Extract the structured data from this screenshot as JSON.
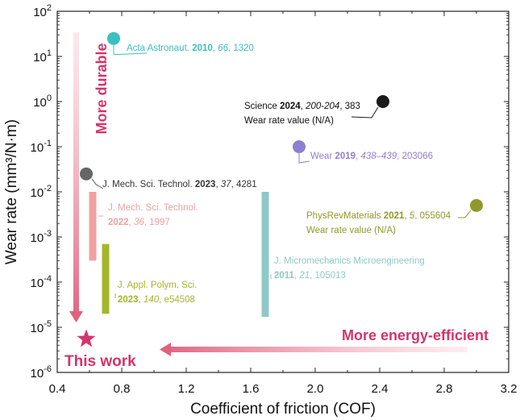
{
  "chart_data": {
    "type": "scatter",
    "xlabel": "Coefficient of friction (COF)",
    "ylabel": "Wear rate (mm³/N·m)",
    "xlim": [
      0.4,
      3.2
    ],
    "ylim_log10": [
      -6,
      2
    ],
    "y_scale": "log",
    "x_ticks": [
      "0.4",
      "0.8",
      "1.2",
      "1.6",
      "2.0",
      "2.4",
      "2.8",
      "3.2"
    ],
    "y_ticks": [
      {
        "base": "10",
        "exp": "2"
      },
      {
        "base": "10",
        "exp": "1"
      },
      {
        "base": "10",
        "exp": "0"
      },
      {
        "base": "10",
        "exp": "-1"
      },
      {
        "base": "10",
        "exp": "-2"
      },
      {
        "base": "10",
        "exp": "-3"
      },
      {
        "base": "10",
        "exp": "-4"
      },
      {
        "base": "10",
        "exp": "-5"
      },
      {
        "base": "10",
        "exp": "-6"
      }
    ],
    "grid": false,
    "points": [
      {
        "x": 0.75,
        "y": 25,
        "color": "#3bbfbf",
        "label": [
          {
            "t": "Acta Astronaut. ",
            "s": "n"
          },
          {
            "t": "2010",
            "s": "b"
          },
          {
            "t": ", ",
            "s": "n"
          },
          {
            "t": "66",
            "s": "i"
          },
          {
            "t": ", 1320",
            "s": "n"
          }
        ]
      },
      {
        "x": 2.42,
        "y": 1.0,
        "color": "#1a1a1a",
        "label": [
          {
            "t": "Science ",
            "s": "n"
          },
          {
            "t": "2024",
            "s": "b"
          },
          {
            "t": ", ",
            "s": "n"
          },
          {
            "t": "200-204",
            "s": "i"
          },
          {
            "t": ", 383",
            "s": "n"
          }
        ],
        "label2": "Wear rate value (N/A)"
      },
      {
        "x": 1.9,
        "y": 0.1,
        "color": "#8f7fd0",
        "label": [
          {
            "t": "Wear ",
            "s": "n"
          },
          {
            "t": "2019",
            "s": "b"
          },
          {
            "t": ", ",
            "s": "n"
          },
          {
            "t": "438–439",
            "s": "i"
          },
          {
            "t": ", 203066",
            "s": "n"
          }
        ]
      },
      {
        "x": 0.58,
        "y": 0.025,
        "color": "#666666",
        "label": [
          {
            "t": "J. Mech. Sci. Technol. ",
            "s": "n"
          },
          {
            "t": "2023",
            "s": "b"
          },
          {
            "t": ", ",
            "s": "n"
          },
          {
            "t": "37",
            "s": "i"
          },
          {
            "t": ", 4281",
            "s": "n"
          }
        ]
      },
      {
        "x": 3.0,
        "y": 0.005,
        "color": "#8f9a2a",
        "label": [
          {
            "t": "PhysRevMaterials ",
            "s": "n"
          },
          {
            "t": "2021",
            "s": "b"
          },
          {
            "t": ", ",
            "s": "n"
          },
          {
            "t": "5",
            "s": "i"
          },
          {
            "t": ", 055604",
            "s": "n"
          }
        ],
        "label2": "Wear rate value (N/A)"
      }
    ],
    "ranges": [
      {
        "x": 0.62,
        "y_min": 0.0003,
        "y_max": 0.01,
        "color": "#f0a0a0",
        "label": [
          {
            "t": "J. Mech. Sci. Technol.",
            "s": "n"
          }
        ],
        "label2": [
          {
            "t": "2022",
            "s": "b"
          },
          {
            "t": ", ",
            "s": "n"
          },
          {
            "t": "36",
            "s": "i"
          },
          {
            "t": ", 1997",
            "s": "n"
          }
        ]
      },
      {
        "x": 0.7,
        "y_min": 2e-05,
        "y_max": 0.0007,
        "color": "#a6b62a",
        "label": [
          {
            "t": "J. Appl. Polym. Sci.",
            "s": "n"
          }
        ],
        "label2": [
          {
            "t": "2023",
            "s": "b"
          },
          {
            "t": ", ",
            "s": "n"
          },
          {
            "t": "140",
            "s": "i"
          },
          {
            "t": ", e54508",
            "s": "n"
          }
        ]
      },
      {
        "x": 1.69,
        "y_min": 1.7e-05,
        "y_max": 0.01,
        "color": "#8fc8c8",
        "label": [
          {
            "t": "J. Micromechanics Microengineering",
            "s": "n"
          }
        ],
        "label2": [
          {
            "t": "2011",
            "s": "b"
          },
          {
            "t": ", ",
            "s": "n"
          },
          {
            "t": "21",
            "s": "i"
          },
          {
            "t": ", 105013",
            "s": "n"
          }
        ]
      }
    ],
    "this_work": {
      "x": 0.58,
      "y": 5.5e-06,
      "label": "This work",
      "color": "#d6336c"
    },
    "annotations": {
      "more_durable": "More durable",
      "more_energy_efficient": "More energy-efficient"
    }
  }
}
